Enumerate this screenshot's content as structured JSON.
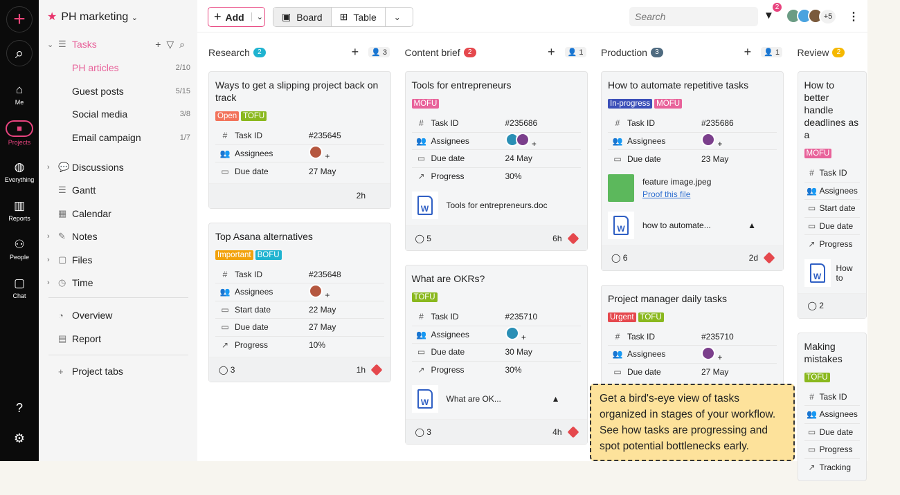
{
  "rail": {
    "items": [
      {
        "label": "Me",
        "icon": "home-icon"
      },
      {
        "label": "Projects",
        "icon": "folder-icon"
      },
      {
        "label": "Everything",
        "icon": "globe-icon"
      },
      {
        "label": "Reports",
        "icon": "bar-chart-icon"
      },
      {
        "label": "People",
        "icon": "people-icon"
      },
      {
        "label": "Chat",
        "icon": "chat-icon"
      }
    ]
  },
  "sidebar": {
    "project": "PH marketing",
    "tasks_label": "Tasks",
    "task_lists": [
      {
        "label": "PH articles",
        "count": "2/10"
      },
      {
        "label": "Guest posts",
        "count": "5/15"
      },
      {
        "label": "Social media",
        "count": "3/8"
      },
      {
        "label": "Email campaign",
        "count": "1/7"
      }
    ],
    "items": [
      {
        "label": "Discussions"
      },
      {
        "label": "Gantt"
      },
      {
        "label": "Calendar"
      },
      {
        "label": "Notes"
      },
      {
        "label": "Files"
      },
      {
        "label": "Time"
      }
    ],
    "views": [
      {
        "label": "Overview"
      },
      {
        "label": "Report"
      }
    ],
    "project_tabs": "Project tabs"
  },
  "toolbar": {
    "add": "Add",
    "board": "Board",
    "table": "Table",
    "search_placeholder": "Search",
    "filter_count": "2",
    "members_more": "+5"
  },
  "colors": {
    "accent": "#e8447f"
  },
  "columns": [
    {
      "name": "Research",
      "count": "2",
      "badge_color": "#1fb3d0",
      "people": "3",
      "cards": [
        {
          "title": "Ways to get a slipping project back on track",
          "tags": [
            {
              "t": "Open",
              "c": "#f2735b"
            },
            {
              "t": "TOFU",
              "c": "#8ab81e"
            }
          ],
          "fields": [
            [
              "#",
              "Task ID",
              "#235645"
            ],
            [
              "👥",
              "Assignees",
              "@"
            ],
            [
              "▭",
              "Due date",
              "27 May"
            ]
          ],
          "attachments": [],
          "footer": {
            "comments": "",
            "time": "2h",
            "priority": false
          }
        },
        {
          "title": "Top Asana alternatives",
          "tags": [
            {
              "t": "Important",
              "c": "#f2a20c"
            },
            {
              "t": "BOFU",
              "c": "#1fb3d0"
            }
          ],
          "fields": [
            [
              "#",
              "Task ID",
              "#235648"
            ],
            [
              "👥",
              "Assignees",
              "@"
            ],
            [
              "▭",
              "Start date",
              "22 May"
            ],
            [
              "▭",
              "Due date",
              "27 May"
            ],
            [
              "↗",
              "Progress",
              "10%"
            ]
          ],
          "attachments": [],
          "footer": {
            "comments": "3",
            "time": "1h",
            "priority": true
          }
        }
      ]
    },
    {
      "name": "Content brief",
      "count": "2",
      "badge_color": "#e5484d",
      "people": "1",
      "cards": [
        {
          "title": "Tools for entrepreneurs",
          "tags": [
            {
              "t": "MOFU",
              "c": "#e8629a"
            }
          ],
          "fields": [
            [
              "#",
              "Task ID",
              "#235686"
            ],
            [
              "👥",
              "Assignees",
              "@@"
            ],
            [
              "▭",
              "Due date",
              "24 May"
            ],
            [
              "↗",
              "Progress",
              "30%"
            ]
          ],
          "attachments": [
            {
              "name": "Tools for entrepreneurs.doc",
              "type": "word"
            }
          ],
          "footer": {
            "comments": "5",
            "time": "6h",
            "priority": true
          }
        },
        {
          "title": "What are OKRs?",
          "tags": [
            {
              "t": "TOFU",
              "c": "#8ab81e"
            }
          ],
          "fields": [
            [
              "#",
              "Task ID",
              "#235710"
            ],
            [
              "👥",
              "Assignees",
              "@"
            ],
            [
              "▭",
              "Due date",
              "30 May"
            ],
            [
              "↗",
              "Progress",
              "30%"
            ]
          ],
          "attachments": [
            {
              "name": "What are OK...",
              "type": "word",
              "drive": true
            }
          ],
          "footer": {
            "comments": "3",
            "time": "4h",
            "priority": true
          }
        }
      ]
    },
    {
      "name": "Production",
      "count": "3",
      "badge_color": "#4f6b80",
      "people": "1",
      "cards": [
        {
          "title": "How to automate repetitive tasks",
          "tags": [
            {
              "t": "In-progress",
              "c": "#3b4fb8"
            },
            {
              "t": "MOFU",
              "c": "#e8629a"
            }
          ],
          "fields": [
            [
              "#",
              "Task ID",
              "#235686"
            ],
            [
              "👥",
              "Assignees",
              "@"
            ],
            [
              "▭",
              "Due date",
              "23 May"
            ]
          ],
          "attachments": [
            {
              "name": "feature image.jpeg",
              "type": "image",
              "link": "Proof this file"
            },
            {
              "name": "how to automate...",
              "type": "word",
              "drive": true
            }
          ],
          "footer": {
            "comments": "6",
            "time": "2d",
            "priority": true
          }
        },
        {
          "title": "Project manager daily tasks",
          "tags": [
            {
              "t": "Urgent",
              "c": "#e5484d"
            },
            {
              "t": "TOFU",
              "c": "#8ab81e"
            }
          ],
          "fields": [
            [
              "#",
              "Task ID",
              "#235710"
            ],
            [
              "👥",
              "Assignees",
              "@"
            ],
            [
              "▭",
              "Due date",
              "27 May"
            ]
          ],
          "attachments": [],
          "footer": {
            "comments": "",
            "time": "",
            "priority": false
          }
        }
      ]
    },
    {
      "name": "Review",
      "count": "2",
      "badge_color": "#f5b800",
      "people": "",
      "cards": [
        {
          "title": "How to better handle deadlines as a",
          "tags": [
            {
              "t": "MOFU",
              "c": "#e8629a"
            }
          ],
          "fields": [
            [
              "#",
              "Task ID",
              ""
            ],
            [
              "👥",
              "Assignees",
              ""
            ],
            [
              "▭",
              "Start date",
              ""
            ],
            [
              "▭",
              "Due date",
              ""
            ],
            [
              "↗",
              "Progress",
              ""
            ]
          ],
          "attachments": [
            {
              "name": "How to",
              "type": "word"
            }
          ],
          "footer": {
            "comments": "2",
            "time": "",
            "priority": false
          }
        },
        {
          "title": "Making mistakes",
          "tags": [
            {
              "t": "TOFU",
              "c": "#8ab81e"
            }
          ],
          "fields": [
            [
              "#",
              "Task ID",
              ""
            ],
            [
              "👥",
              "Assignees",
              ""
            ],
            [
              "▭",
              "Due date",
              ""
            ],
            [
              "▭",
              "Progress",
              ""
            ],
            [
              "↗",
              "Tracking",
              ""
            ]
          ],
          "attachments": [],
          "footer": {
            "comments": "",
            "time": "",
            "priority": false
          }
        }
      ]
    }
  ],
  "tooltip": "Get a bird's-eye view of tasks organized in stages of your workflow. See how tasks are progressing and spot potential bottlenecks early."
}
